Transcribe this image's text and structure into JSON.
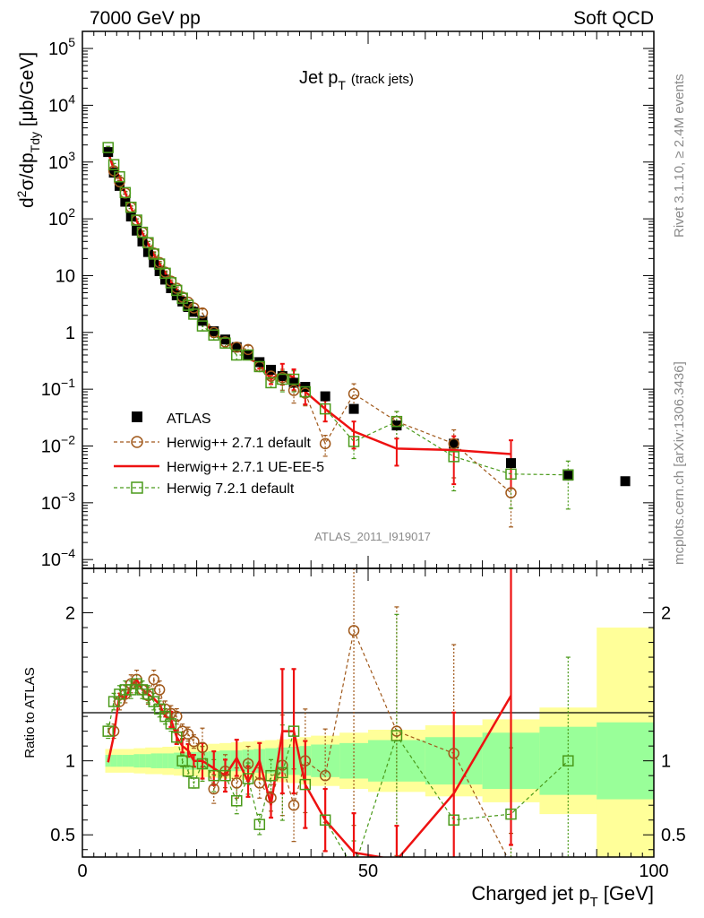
{
  "header": {
    "left": "7000 GeV pp",
    "right": "Soft QCD"
  },
  "side_texts": {
    "rivet": "Rivet 3.1.10, ≥ 2.4M events",
    "mcplots": "mcplots.cern.ch [arXiv:1306.3436]"
  },
  "chart_data": [
    {
      "type": "scatter",
      "title_main": "Jet p",
      "title_sub": "T",
      "title_extra": "(track jets)",
      "ylabel_parts": [
        "d",
        "2",
        "σ/dp",
        "Tdy",
        " [μb/GeV]"
      ],
      "analysis_label": "ATLAS_2011_I919017",
      "yscale": "log",
      "ylim": [
        7e-05,
        200000
      ],
      "xlim": [
        0,
        100
      ],
      "y_ticks": [
        {
          "v": 0.0001,
          "base": "10",
          "exp": "−4"
        },
        {
          "v": 0.001,
          "base": "10",
          "exp": "−3"
        },
        {
          "v": 0.01,
          "base": "10",
          "exp": "−2"
        },
        {
          "v": 0.1,
          "base": "10",
          "exp": "−1"
        },
        {
          "v": 1,
          "base": "1",
          "exp": ""
        },
        {
          "v": 10,
          "base": "10",
          "exp": ""
        },
        {
          "v": 100,
          "base": "10",
          "exp": "2"
        },
        {
          "v": 1000,
          "base": "10",
          "exp": "3"
        },
        {
          "v": 10000,
          "base": "10",
          "exp": "4"
        },
        {
          "v": 100000,
          "base": "10",
          "exp": "5"
        }
      ],
      "legend": [
        {
          "name": "ATLAS",
          "marker": "filled-square",
          "color": "#000000"
        },
        {
          "name": "Herwig++ 2.7.1 default",
          "marker": "open-circle",
          "color": "#a0581a"
        },
        {
          "name": "Herwig++ 2.7.1 UE-EE-5",
          "marker": "line",
          "color": "#ee1111"
        },
        {
          "name": "Herwig 7.2.1 default",
          "marker": "open-square",
          "color": "#4a9a1a"
        }
      ],
      "series": [
        {
          "name": "ATLAS",
          "x": [
            4.5,
            5.5,
            6.5,
            7.5,
            8.5,
            9.5,
            10.5,
            11.5,
            12.5,
            13.5,
            14.5,
            15.5,
            16.5,
            17.5,
            18.5,
            19.5,
            21,
            23,
            25,
            27,
            29,
            31,
            33,
            35,
            37,
            39,
            42.5,
            47.5,
            55,
            65,
            75,
            85,
            95
          ],
          "y": [
            1500,
            650,
            380,
            200,
            110,
            62,
            40,
            26,
            17,
            12,
            8.5,
            6,
            4.5,
            3.5,
            2.8,
            2.3,
            1.6,
            1.05,
            0.75,
            0.55,
            0.4,
            0.3,
            0.22,
            0.17,
            0.13,
            0.11,
            0.075,
            0.045,
            0.023,
            0.011,
            0.005,
            0.003,
            0.0024
          ]
        },
        {
          "name": "Herwig++ 2.7.1 default",
          "x": [
            5.5,
            6.5,
            7.5,
            8.5,
            9.5,
            10.5,
            11.5,
            12.5,
            13.5,
            14.5,
            15.5,
            16.5,
            17.5,
            18.5,
            19.5,
            21,
            23,
            25,
            27,
            29,
            31,
            33,
            35,
            37,
            39,
            42.5,
            47.5,
            55,
            65,
            75
          ],
          "y": [
            700,
            450,
            285,
            160,
            95,
            58,
            38,
            25,
            17,
            11.5,
            8,
            6,
            4.2,
            3.4,
            2.7,
            2.2,
            1.0,
            0.68,
            0.55,
            0.5,
            0.25,
            0.17,
            0.16,
            0.095,
            0.085,
            0.011,
            0.083,
            0.027,
            0.011,
            0.0015
          ]
        },
        {
          "name": "Herwig++ 2.7.1 UE-EE-5",
          "x": [
            4.5,
            5.5,
            6.5,
            7.5,
            8.5,
            9.5,
            10.5,
            11.5,
            12.5,
            13.5,
            14.5,
            15.5,
            16.5,
            17.5,
            18.5,
            19.5,
            21,
            23,
            25,
            27,
            29,
            31,
            33,
            35,
            37,
            39,
            42.5,
            47.5,
            55,
            65,
            75
          ],
          "y": [
            1485,
            740,
            560,
            290,
            160,
            92,
            56,
            36,
            23,
            16,
            11,
            7.7,
            5.6,
            4.1,
            3.1,
            2.4,
            1.6,
            1.0,
            0.68,
            0.55,
            0.35,
            0.28,
            0.15,
            0.2,
            0.16,
            0.09,
            0.045,
            0.018,
            0.009,
            0.0085,
            0.0072
          ]
        },
        {
          "name": "Herwig 7.2.1 default",
          "x": [
            4.5,
            5.5,
            6.5,
            7.5,
            8.5,
            9.5,
            10.5,
            11.5,
            12.5,
            13.5,
            14.5,
            15.5,
            16.5,
            17.5,
            18.5,
            19.5,
            21,
            23,
            25,
            27,
            29,
            31,
            33,
            35,
            37,
            39,
            42.5,
            47.5,
            55,
            65,
            75,
            85
          ],
          "y": [
            1800,
            900,
            550,
            290,
            160,
            95,
            58,
            38,
            24,
            16,
            11,
            7.5,
            5.5,
            4,
            3,
            2.1,
            1.3,
            0.9,
            0.65,
            0.4,
            0.4,
            0.25,
            0.13,
            0.15,
            0.15,
            0.09,
            0.045,
            0.012,
            0.027,
            0.0065,
            0.0032,
            0.0031
          ]
        }
      ]
    },
    {
      "type": "scatter",
      "ylabel": "Ratio to ATLAS",
      "xlabel_main": "Charged jet p",
      "xlabel_sub": "T",
      "xlabel_unit": " [GeV]",
      "ylim": [
        0.35,
        2.3
      ],
      "xlim": [
        0,
        100
      ],
      "x_ticks": [
        "0",
        "50",
        "100"
      ],
      "y_ticks": [
        {
          "v": 0.5,
          "label": "0.5"
        },
        {
          "v": 1,
          "label": "1"
        },
        {
          "v": 2,
          "label": "2"
        }
      ],
      "band_edges": [
        4,
        5,
        6,
        7,
        8,
        9,
        10,
        11,
        12,
        13,
        14,
        15,
        16,
        17,
        18,
        20,
        22,
        24,
        26,
        28,
        30,
        32,
        34,
        36,
        38,
        40,
        45,
        50,
        60,
        70,
        80,
        90,
        100
      ],
      "band_yellow": [
        0.08,
        0.08,
        0.08,
        0.08,
        0.08,
        0.085,
        0.085,
        0.09,
        0.09,
        0.09,
        0.095,
        0.095,
        0.1,
        0.1,
        0.105,
        0.11,
        0.115,
        0.12,
        0.125,
        0.13,
        0.135,
        0.14,
        0.145,
        0.15,
        0.16,
        0.17,
        0.19,
        0.21,
        0.24,
        0.28,
        0.36,
        0.9
      ],
      "band_green": [
        0.04,
        0.04,
        0.04,
        0.04,
        0.04,
        0.045,
        0.045,
        0.045,
        0.05,
        0.05,
        0.05,
        0.05,
        0.055,
        0.055,
        0.06,
        0.06,
        0.065,
        0.07,
        0.07,
        0.075,
        0.08,
        0.085,
        0.09,
        0.095,
        0.1,
        0.11,
        0.12,
        0.14,
        0.16,
        0.19,
        0.23,
        0.26
      ],
      "series": [
        {
          "name": "Herwig++ 2.7.1 default",
          "x": [
            5.5,
            6.5,
            7.5,
            8.5,
            9.5,
            10.5,
            11.5,
            12.5,
            13.5,
            14.5,
            15.5,
            16.5,
            17.5,
            18.5,
            19.5,
            21,
            23,
            25,
            27,
            29,
            31,
            33,
            35,
            37,
            39,
            42.5,
            47.5,
            55,
            65,
            75
          ],
          "y": [
            1.2,
            1.4,
            1.45,
            1.52,
            1.55,
            1.48,
            1.44,
            1.55,
            1.48,
            1.35,
            1.32,
            1.3,
            1.2,
            1.18,
            1.13,
            1.09,
            0.81,
            0.93,
            0.85,
            0.98,
            0.85,
            0.75,
            0.97,
            0.7,
            1.0,
            0.9,
            1.88,
            1.2,
            1.05,
            0.3
          ]
        },
        {
          "name": "Herwig++ 2.7.1 UE-EE-5",
          "x": [
            4.5,
            5.5,
            6.5,
            7.5,
            8.5,
            9.5,
            10.5,
            11.5,
            12.5,
            13.5,
            14.5,
            15.5,
            16.5,
            17.5,
            18.5,
            19.5,
            21,
            23,
            25,
            27,
            29,
            31,
            33,
            35,
            37,
            39,
            42.5,
            47.5,
            55,
            65,
            75
          ],
          "y": [
            0.99,
            1.17,
            1.45,
            1.42,
            1.5,
            1.55,
            1.48,
            1.45,
            1.42,
            1.38,
            1.3,
            1.28,
            1.16,
            1.1,
            1.07,
            1.0,
            1.0,
            0.95,
            0.9,
            1.02,
            0.86,
            1.0,
            0.7,
            1.2,
            1.2,
            0.84,
            0.6,
            0.38,
            0.33,
            0.78,
            1.44
          ]
        },
        {
          "name": "Herwig 7.2.1 default",
          "x": [
            4.5,
            5.5,
            6.5,
            7.5,
            8.5,
            9.5,
            10.5,
            11.5,
            12.5,
            13.5,
            14.5,
            15.5,
            16.5,
            17.5,
            18.5,
            19.5,
            21,
            23,
            25,
            27,
            29,
            31,
            33,
            35,
            37,
            39,
            42.5,
            47.5,
            55,
            65,
            75,
            85
          ],
          "y": [
            1.2,
            1.4,
            1.45,
            1.48,
            1.48,
            1.52,
            1.48,
            1.45,
            1.4,
            1.35,
            1.3,
            1.25,
            1.16,
            1.0,
            0.93,
            0.85,
            0.98,
            0.9,
            0.9,
            0.73,
            0.88,
            0.57,
            0.9,
            0.92,
            1.2,
            0.84,
            0.6,
            0.27,
            1.17,
            0.6,
            0.64,
            1.0
          ]
        }
      ]
    }
  ]
}
